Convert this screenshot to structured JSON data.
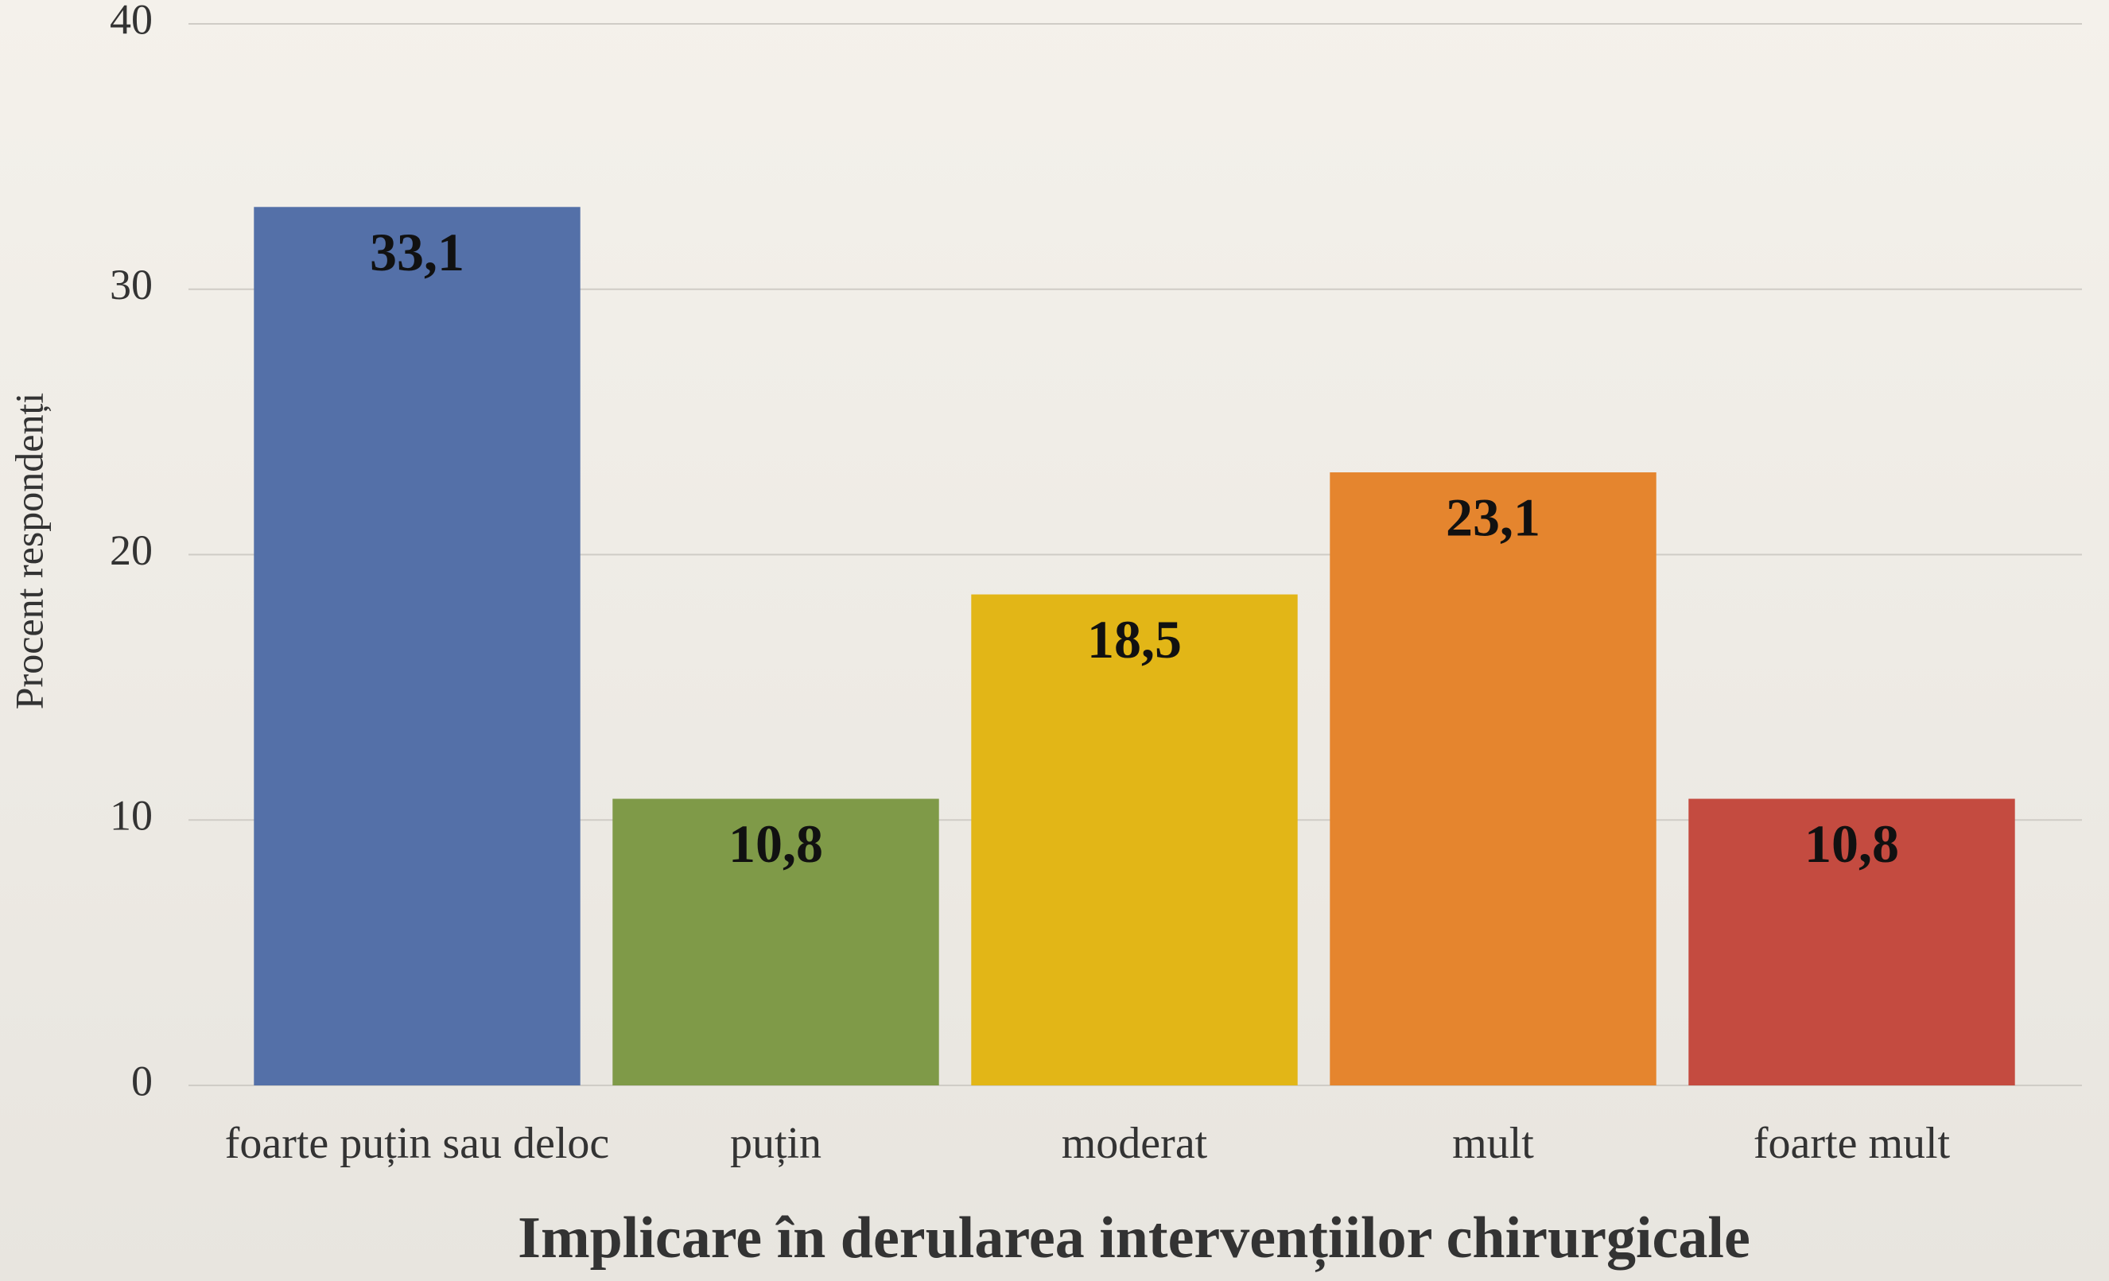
{
  "chart_data": {
    "type": "bar",
    "title": "Implicare în derularea intervențiilor chirurgicale",
    "y_label": "Procent respondenți",
    "categories": [
      "foarte puțin sau deloc",
      "puțin",
      "moderat",
      "mult",
      "foarte mult"
    ],
    "values": [
      33.1,
      10.8,
      18.5,
      23.1,
      10.8
    ],
    "value_labels": [
      "33,1",
      "10,8",
      "18,5",
      "23,1",
      "10,8"
    ],
    "colors": [
      "#5470a8",
      "#7f9a48",
      "#e2b617",
      "#e5852e",
      "#c44b40"
    ],
    "ylim": [
      0,
      40
    ],
    "yticks": [
      0,
      10,
      20,
      30,
      40
    ],
    "grid": true
  }
}
